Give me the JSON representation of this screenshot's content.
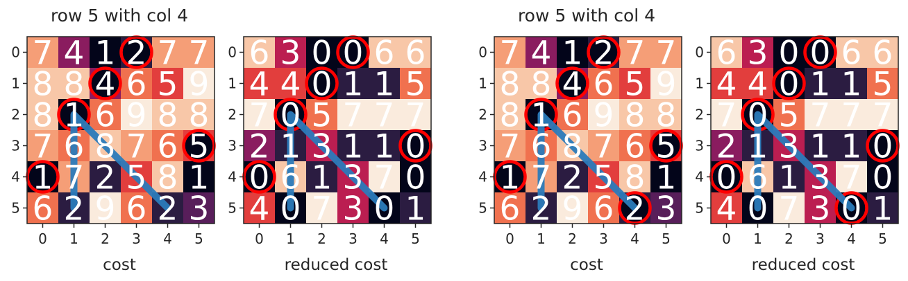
{
  "chart_data": [
    {
      "type": "heatmap",
      "title": "row 5 with col 4",
      "xlabel": "cost",
      "x_ticks": [
        "0",
        "1",
        "2",
        "3",
        "4",
        "5"
      ],
      "y_ticks": [
        "0",
        "1",
        "2",
        "3",
        "4",
        "5"
      ],
      "values": [
        [
          7,
          4,
          1,
          2,
          7,
          7
        ],
        [
          8,
          8,
          4,
          6,
          5,
          9
        ],
        [
          8,
          1,
          6,
          9,
          8,
          8
        ],
        [
          7,
          6,
          8,
          7,
          6,
          5
        ],
        [
          1,
          7,
          2,
          5,
          8,
          1
        ],
        [
          6,
          2,
          9,
          6,
          2,
          3
        ]
      ],
      "circled_cells": [
        [
          0,
          3
        ],
        [
          1,
          2
        ],
        [
          2,
          1
        ],
        [
          3,
          5
        ],
        [
          4,
          0
        ]
      ],
      "path": [
        [
          2,
          1
        ],
        [
          4,
          1
        ],
        [
          5,
          1
        ],
        [
          2,
          1
        ],
        [
          5,
          4
        ]
      ]
    },
    {
      "type": "heatmap",
      "xlabel": "reduced cost",
      "x_ticks": [
        "0",
        "1",
        "2",
        "3",
        "4",
        "5"
      ],
      "y_ticks": [
        "0",
        "1",
        "2",
        "3",
        "4",
        "5"
      ],
      "values": [
        [
          6,
          3,
          0,
          0,
          6,
          6
        ],
        [
          4,
          4,
          0,
          1,
          1,
          5
        ],
        [
          7,
          0,
          5,
          7,
          7,
          7
        ],
        [
          2,
          1,
          3,
          1,
          1,
          0
        ],
        [
          0,
          6,
          1,
          3,
          7,
          0
        ],
        [
          4,
          0,
          7,
          3,
          0,
          1
        ]
      ],
      "circled_cells": [
        [
          0,
          3
        ],
        [
          1,
          2
        ],
        [
          2,
          1
        ],
        [
          3,
          5
        ],
        [
          4,
          0
        ]
      ],
      "path": [
        [
          2,
          1
        ],
        [
          4,
          1
        ],
        [
          5,
          1
        ],
        [
          2,
          1
        ],
        [
          5,
          4
        ]
      ]
    },
    {
      "type": "heatmap",
      "title": "row 5 with col 4",
      "xlabel": "cost",
      "x_ticks": [
        "0",
        "1",
        "2",
        "3",
        "4",
        "5"
      ],
      "y_ticks": [
        "0",
        "1",
        "2",
        "3",
        "4",
        "5"
      ],
      "values": [
        [
          7,
          4,
          1,
          2,
          7,
          7
        ],
        [
          8,
          8,
          4,
          6,
          5,
          9
        ],
        [
          8,
          1,
          6,
          9,
          8,
          8
        ],
        [
          7,
          6,
          8,
          7,
          6,
          5
        ],
        [
          1,
          7,
          2,
          5,
          8,
          1
        ],
        [
          6,
          2,
          9,
          6,
          2,
          3
        ]
      ],
      "circled_cells": [
        [
          0,
          3
        ],
        [
          1,
          2
        ],
        [
          2,
          1
        ],
        [
          3,
          5
        ],
        [
          4,
          0
        ],
        [
          5,
          4
        ]
      ],
      "path": [
        [
          2,
          1
        ],
        [
          4,
          1
        ],
        [
          5,
          1
        ],
        [
          2,
          1
        ],
        [
          5,
          4
        ]
      ]
    },
    {
      "type": "heatmap",
      "xlabel": "reduced cost",
      "x_ticks": [
        "0",
        "1",
        "2",
        "3",
        "4",
        "5"
      ],
      "y_ticks": [
        "0",
        "1",
        "2",
        "3",
        "4",
        "5"
      ],
      "values": [
        [
          6,
          3,
          0,
          0,
          6,
          6
        ],
        [
          4,
          4,
          0,
          1,
          1,
          5
        ],
        [
          7,
          0,
          5,
          7,
          7,
          7
        ],
        [
          2,
          1,
          3,
          1,
          1,
          0
        ],
        [
          0,
          6,
          1,
          3,
          7,
          0
        ],
        [
          4,
          0,
          7,
          3,
          0,
          1
        ]
      ],
      "circled_cells": [
        [
          0,
          3
        ],
        [
          1,
          2
        ],
        [
          2,
          1
        ],
        [
          3,
          5
        ],
        [
          4,
          0
        ],
        [
          5,
          4
        ]
      ],
      "path": [
        [
          2,
          1
        ],
        [
          4,
          1
        ],
        [
          5,
          1
        ],
        [
          2,
          1
        ],
        [
          5,
          4
        ]
      ]
    }
  ],
  "colors": {
    "colormap": [
      "#03051a",
      "#2b1c41",
      "#581e5a",
      "#8a1c5f",
      "#bb1e51",
      "#e23e3d",
      "#f0714f",
      "#f59e77",
      "#f8c7a8",
      "#faebdd"
    ],
    "circle": "#ff0000",
    "path": "#2b7bba",
    "cell_text": "#ffffff",
    "axes_text": "#262626"
  }
}
